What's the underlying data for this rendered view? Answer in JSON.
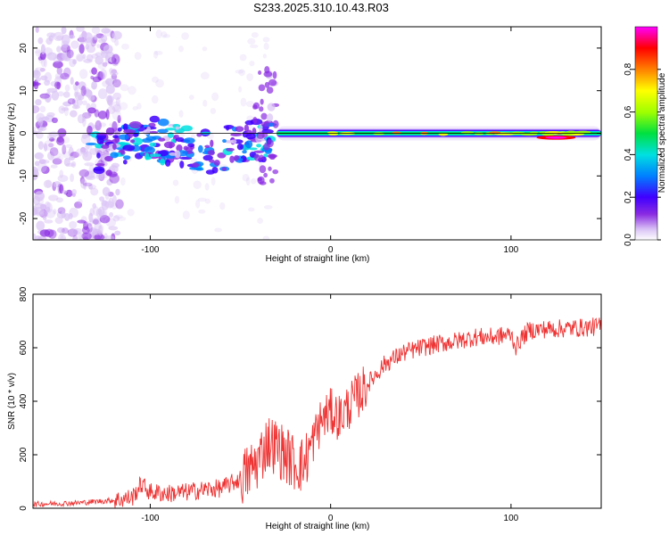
{
  "title": "S233.2025.310.10.43.R03",
  "colors": {
    "snr_line": "#ee3333",
    "axis": "#000000",
    "background": "#ffffff"
  },
  "chart_data": [
    {
      "type": "heatmap",
      "name": "spectrogram",
      "xlabel": "Height of straight line (km)",
      "ylabel": "Frequency (Hz)",
      "xlim": [
        -165,
        150
      ],
      "ylim": [
        -25,
        25
      ],
      "xticks": [
        -100,
        0,
        100
      ],
      "yticks": [
        -20,
        -10,
        0,
        10,
        20
      ],
      "colorbar": {
        "label": "Normalized spectral amplitude",
        "range": [
          0.0,
          1.0
        ],
        "ticks": [
          0.0,
          0.2,
          0.4,
          0.6,
          0.8
        ],
        "tick_labels": [
          "0.0",
          "0.2",
          "0.4",
          "0.6",
          "0.8"
        ],
        "colormap": [
          "#ffffff",
          "#d9c2f5",
          "#8a2be2",
          "#4000ff",
          "#0080ff",
          "#00e0e0",
          "#00e040",
          "#a0ff00",
          "#ffff00",
          "#ff8000",
          "#ff0000",
          "#ff00ff"
        ]
      },
      "features": [
        {
          "region": "noise",
          "x_range": [
            -165,
            -117
          ],
          "freq_range": [
            -25,
            25
          ],
          "amplitude": 0.05
        },
        {
          "region": "scattered",
          "x_range": [
            -133,
            -32
          ],
          "freq_range": [
            -8,
            2
          ],
          "amplitude": 0.35
        },
        {
          "region": "carrier",
          "x_range": [
            -30,
            150
          ],
          "freq_center": 0,
          "amplitude": 0.45
        },
        {
          "region": "peak",
          "x_range": [
            115,
            135
          ],
          "freq_center": -1,
          "amplitude": 0.95
        }
      ]
    },
    {
      "type": "line",
      "name": "snr",
      "xlabel": "Height of straight line (km)",
      "ylabel": "SNR (10 * v/v)",
      "xlim": [
        -165,
        150
      ],
      "ylim": [
        0,
        800
      ],
      "xticks": [
        -100,
        0,
        100
      ],
      "yticks": [
        0,
        200,
        400,
        600,
        800
      ],
      "series": [
        {
          "name": "SNR",
          "x": [
            -165,
            -150,
            -140,
            -130,
            -120,
            -110,
            -105,
            -100,
            -90,
            -80,
            -70,
            -60,
            -50,
            -45,
            -40,
            -35,
            -30,
            -25,
            -20,
            -15,
            -10,
            -5,
            0,
            5,
            10,
            15,
            20,
            25,
            30,
            40,
            50,
            60,
            70,
            80,
            90,
            100,
            103,
            105,
            110,
            120,
            130,
            140,
            150
          ],
          "y": [
            15,
            18,
            20,
            25,
            30,
            40,
            90,
            60,
            55,
            60,
            70,
            75,
            110,
            140,
            180,
            250,
            230,
            200,
            170,
            160,
            250,
            330,
            360,
            340,
            380,
            420,
            460,
            500,
            540,
            580,
            600,
            615,
            625,
            640,
            640,
            650,
            600,
            630,
            665,
            670,
            672,
            675,
            680
          ]
        }
      ]
    }
  ]
}
